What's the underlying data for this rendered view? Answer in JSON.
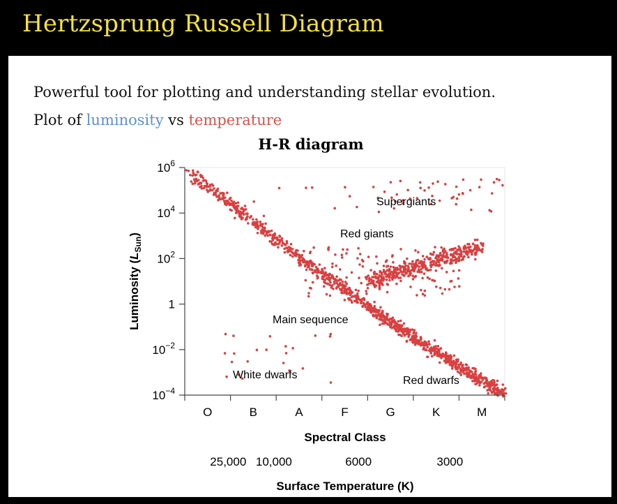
{
  "slide": {
    "title": "Hertzsprung Russell Diagram",
    "line1": "Powerful tool for plotting and understanding stellar evolution.",
    "line2_prefix": "Plot of",
    "line2_word1": "luminosity",
    "line2_mid": "vs",
    "line2_word2": "temperature"
  },
  "colors": {
    "title": "#f5e23a",
    "luminosity": "#5b8fd6",
    "temperature": "#d9514a",
    "points": "#d94040"
  },
  "chart_data": {
    "type": "scatter",
    "title": "H-R diagram",
    "ylabel_main": "Luminosity (",
    "ylabel_symbol": "L",
    "ylabel_sub": "Sun",
    "ylabel_close": ")",
    "xlabel": "Spectral Class",
    "xlabel2": "Surface Temperature (K)",
    "yscale": "log",
    "ylim": [
      0.0001,
      1000000
    ],
    "y_ticks": [
      {
        "base": "10",
        "exp": "6"
      },
      {
        "base": "10",
        "exp": "4"
      },
      {
        "base": "10",
        "exp": "2"
      },
      {
        "base": "1",
        "exp": ""
      },
      {
        "base": "10",
        "exp": "−2"
      },
      {
        "base": "10",
        "exp": "−4"
      }
    ],
    "spectral_classes": [
      "O",
      "B",
      "A",
      "F",
      "G",
      "K",
      "M"
    ],
    "temperature_labels": [
      "25,000",
      "10,000",
      "6000",
      "3000"
    ],
    "annotations": [
      "Supergiants",
      "Red giants",
      "Main sequence",
      "White dwarfs",
      "Red dwarfs"
    ],
    "series": [
      {
        "name": "Main sequence",
        "class_range": [
          0,
          7
        ],
        "log_luminosity_range": [
          6,
          -4
        ]
      },
      {
        "name": "Red giants",
        "class_range": [
          4,
          6.5
        ],
        "log_luminosity_range": [
          1,
          3
        ]
      },
      {
        "name": "Supergiants",
        "class_range": [
          4,
          7
        ],
        "log_luminosity_range": [
          4,
          5.5
        ]
      },
      {
        "name": "White dwarfs",
        "class_range": [
          0.8,
          3.2
        ],
        "log_luminosity_range": [
          -1,
          -3.5
        ]
      }
    ],
    "grid": false
  }
}
